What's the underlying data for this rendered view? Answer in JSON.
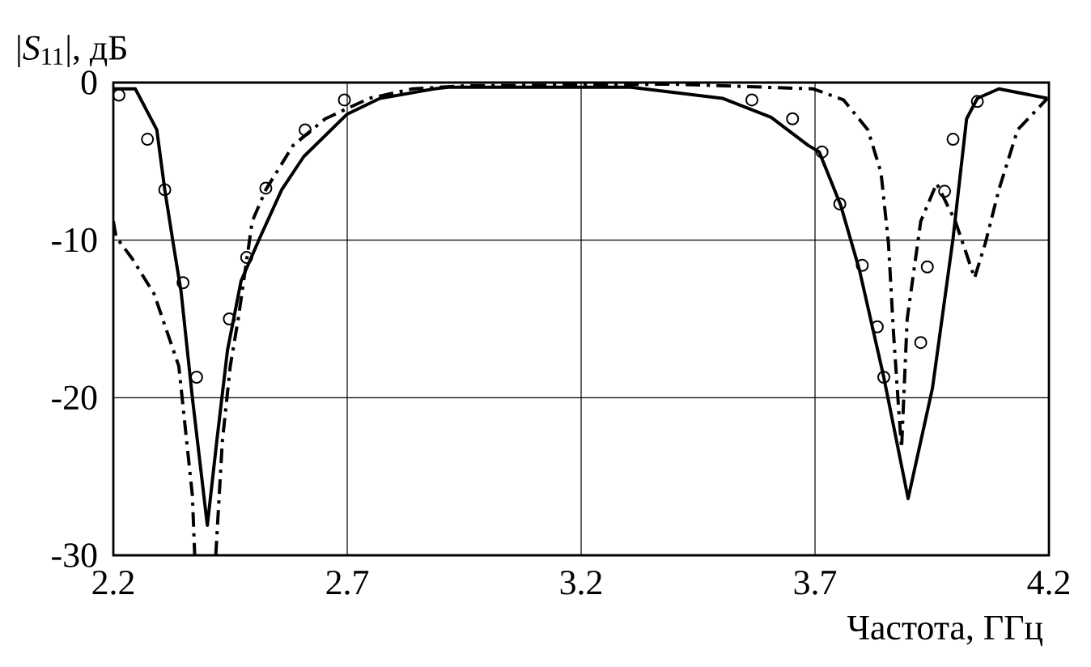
{
  "chart_data": {
    "type": "line",
    "xlabel": "Частота, ГГц",
    "ylabel": "|*S*$_{11}$|, дБ",
    "xlim": [
      2.2,
      4.2
    ],
    "ylim": [
      -30,
      0
    ],
    "xticks": [
      2.2,
      2.7,
      3.2,
      3.7,
      4.2
    ],
    "yticks": [
      0,
      -10,
      -20,
      -30
    ],
    "grid": true,
    "series": [
      {
        "color": "#000000",
        "line_style": "solid",
        "marker": "none",
        "x": [
          2.2,
          2.247,
          2.293,
          2.31,
          2.328,
          2.345,
          2.369,
          2.401,
          2.421,
          2.444,
          2.473,
          2.514,
          2.56,
          2.607,
          2.7,
          2.77,
          2.886,
          2.916,
          3.306,
          3.502,
          3.606,
          3.686,
          3.709,
          3.755,
          3.795,
          3.847,
          3.899,
          3.951,
          3.995,
          4.024,
          4.047,
          4.093,
          4.197
        ],
        "values": [
          -0.4,
          -0.4,
          -3,
          -6.8,
          -10.2,
          -13.3,
          -20,
          -28.1,
          -22.8,
          -17,
          -12.6,
          -9.8,
          -6.8,
          -4.7,
          -2,
          -1,
          -0.4,
          -0.3,
          -0.3,
          -1,
          -2.2,
          -4,
          -4.4,
          -7.8,
          -11.9,
          -18.7,
          -26.4,
          -19.4,
          -9.9,
          -2.3,
          -1,
          -0.4,
          -1
        ]
      },
      {
        "color": "#000000",
        "line_style": "dashdot",
        "marker": "none",
        "x": [
          2.2,
          2.206,
          2.241,
          2.287,
          2.34,
          2.369,
          2.374,
          2.397,
          2.419,
          2.433,
          2.45,
          2.467,
          2.497,
          2.526,
          2.584,
          2.653,
          2.747,
          2.84,
          2.95,
          3.4,
          3.696,
          3.761,
          3.813,
          3.841,
          3.857,
          3.868,
          3.879,
          3.885,
          3.897,
          3.926,
          3.96,
          4.0,
          4.041,
          4.064,
          4.093,
          4.133,
          4.197
        ],
        "values": [
          -8.8,
          -9.8,
          -11.2,
          -13.4,
          -18,
          -26.2,
          -30,
          null,
          -30,
          -22.8,
          -18,
          -15,
          -8.8,
          -6.8,
          -4,
          -2.3,
          -1,
          -0.4,
          -0.2,
          -0.1,
          -0.4,
          -1.1,
          -3,
          -5.7,
          -10.2,
          -16,
          -20.8,
          -23.2,
          -15,
          -8.8,
          -6.4,
          -8.8,
          -12.4,
          -10.2,
          -6.8,
          -3,
          -1
        ]
      },
      {
        "type": "scatter",
        "color": "#000000",
        "marker": "circle",
        "x": [
          2.212,
          2.273,
          2.31,
          2.349,
          2.378,
          2.448,
          2.485,
          2.526,
          2.61,
          2.694,
          3.565,
          3.652,
          3.715,
          3.753,
          3.801,
          3.833,
          3.847,
          3.926,
          3.94,
          3.977,
          3.995,
          4.047
        ],
        "values": [
          -0.8,
          -3.6,
          -6.8,
          -12.7,
          -18.7,
          -15,
          -11.1,
          -6.7,
          -3,
          -1.1,
          -1.1,
          -2.3,
          -4.4,
          -7.7,
          -11.6,
          -15.5,
          -18.7,
          -16.5,
          -11.7,
          -6.9,
          -3.6,
          -1.2
        ]
      }
    ]
  }
}
